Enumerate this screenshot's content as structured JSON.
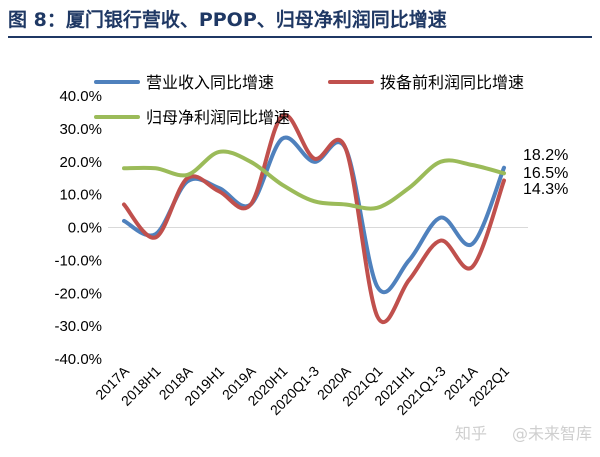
{
  "title": "图 8：厦门银行营收、PPOP、归母净利润同比增速",
  "watermark": {
    "left": "知乎",
    "right": "@未来智库"
  },
  "colors": {
    "title": "#1f3864",
    "revenue": "#4f81bd",
    "ppop": "#c0504d",
    "net_profit": "#9bbb59"
  },
  "chart_data": {
    "type": "line",
    "categories": [
      "2017A",
      "2018H1",
      "2018A",
      "2019H1",
      "2019A",
      "2020H1",
      "2020Q1-3",
      "2020A",
      "2021Q1",
      "2021H1",
      "2021Q1-3",
      "2021A",
      "2022Q1"
    ],
    "ylim": [
      -40,
      40
    ],
    "yticks": [
      -40,
      -30,
      -20,
      -10,
      0,
      10,
      20,
      30,
      40
    ],
    "ytick_labels": [
      "-40.0%",
      "-30.0%",
      "-20.0%",
      "-10.0%",
      "0.0%",
      "10.0%",
      "20.0%",
      "30.0%",
      "40.0%"
    ],
    "legend_position": "top",
    "series": [
      {
        "name": "营业收入同比增速",
        "color_key": "revenue",
        "values": [
          2,
          -2,
          14,
          12,
          7,
          27,
          20,
          24,
          -18,
          -10,
          3,
          -5,
          18.2
        ]
      },
      {
        "name": "拨备前利润同比增速",
        "color_key": "ppop",
        "values": [
          7,
          -3,
          15,
          11,
          7,
          34,
          21,
          24,
          -27,
          -16,
          -4,
          -12,
          14.3
        ]
      },
      {
        "name": "归母净利润同比增速",
        "color_key": "net_profit",
        "values": [
          18,
          18,
          16,
          23,
          20,
          13,
          8,
          7,
          6,
          12,
          20,
          19,
          16.5
        ]
      }
    ],
    "end_labels": [
      "18.2%",
      "16.5%",
      "14.3%"
    ]
  }
}
